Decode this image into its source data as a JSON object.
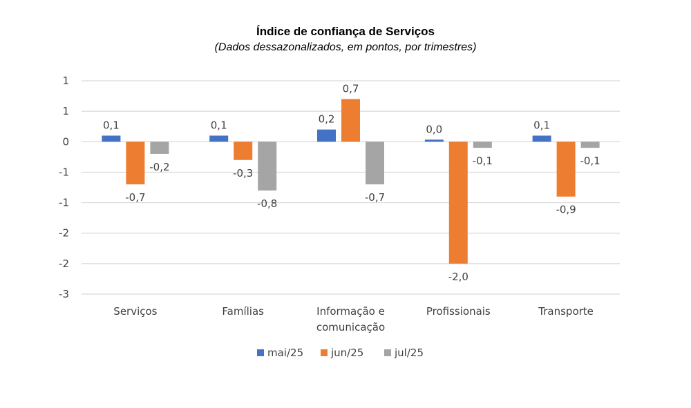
{
  "chart_data": {
    "type": "bar",
    "title": "Índice de confiança de Serviços",
    "subtitle": "(Dados dessazonalizados, em pontos, por trimestres)",
    "categories": [
      [
        "Serviços"
      ],
      [
        "Famílias"
      ],
      [
        "Informação e",
        "comunicação"
      ],
      [
        "Profissionais"
      ],
      [
        "Transporte"
      ]
    ],
    "series": [
      {
        "name": "mai/25",
        "color": "#4472c4",
        "values": [
          0.1,
          0.1,
          0.2,
          0.0,
          0.1
        ],
        "labels": [
          "0,1",
          "0,1",
          "0,2",
          "0,0",
          "0,1"
        ]
      },
      {
        "name": "jun/25",
        "color": "#ed7d31",
        "values": [
          -0.7,
          -0.3,
          0.7,
          -2.0,
          -0.9
        ],
        "labels": [
          "-0,7",
          "-0,3",
          "0,7",
          "-2,0",
          "-0,9"
        ]
      },
      {
        "name": "jul/25",
        "color": "#a5a5a5",
        "values": [
          -0.2,
          -0.8,
          -0.7,
          -0.1,
          -0.1
        ],
        "labels": [
          "-0,2",
          "-0,8",
          "-0,7",
          "-0,1",
          "-0,1"
        ]
      }
    ],
    "ylim": [
      -2.5,
      1.0
    ],
    "yticks": [
      1.0,
      0.5,
      0.0,
      -0.5,
      -1.0,
      -1.5,
      -2.0,
      -2.5
    ],
    "ytick_labels": [
      "1",
      "1",
      "0",
      "-1",
      "-1",
      "-2",
      "-2",
      "-3"
    ],
    "grid": true,
    "legend": "bottom-center"
  }
}
